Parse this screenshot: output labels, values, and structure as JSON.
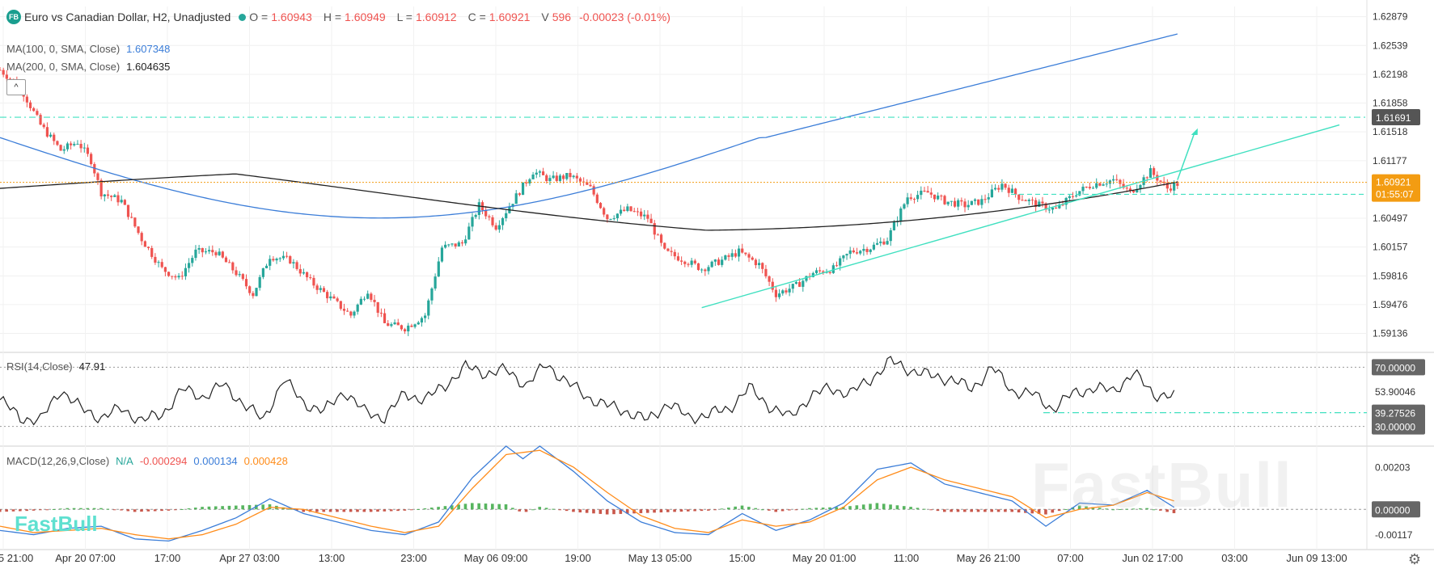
{
  "header": {
    "badge": "FB",
    "title": "Euro vs Canadian Dollar, H2, Unadjusted",
    "o_label": "O =",
    "o_val": "1.60943",
    "h_label": "H =",
    "h_val": "1.60949",
    "l_label": "L =",
    "l_val": "1.60912",
    "c_label": "C =",
    "c_val": "1.60921",
    "v_label": "V",
    "v_val": "596",
    "change": "-0.00023 (-0.01%)"
  },
  "indicators": {
    "ma100_label": "MA(100, 0, SMA, Close)",
    "ma100_val": "1.607348",
    "ma200_label": "MA(200, 0, SMA, Close)",
    "ma200_val": "1.604635",
    "collapse": "^",
    "rsi_label": "RSI(14,Close)",
    "rsi_val": "47.91",
    "macd_label": "MACD(12,26,9,Close)",
    "macd_na": "N/A",
    "macd_hist": "-0.000294",
    "macd_line": "0.000134",
    "macd_signal": "0.000428"
  },
  "watermark": "FastBull",
  "watermark_small": "FastBull",
  "settings_icon": "gear-icon",
  "colors": {
    "up": "#26a69a",
    "down": "#ef5350",
    "ma100": "#3b7dd8",
    "ma200": "#222222",
    "trend": "#40e0c0",
    "last_price": "#f39c12",
    "macd_line": "#3b7dd8",
    "macd_signal": "#ff8c1a"
  },
  "chart_data": [
    {
      "type": "candlestick",
      "title": "Euro vs Canadian Dollar, H2, Unadjusted",
      "price_ticks": [
        "1.62879",
        "1.62539",
        "1.62198",
        "1.61858",
        "1.61518",
        "1.61177",
        "1.60497",
        "1.60157",
        "1.59816",
        "1.59476",
        "1.59136"
      ],
      "ylim": [
        1.5895,
        1.63
      ],
      "x_tick_labels": [
        "Apr 15 21:00",
        "Apr 20 07:00",
        "17:00",
        "Apr 27 03:00",
        "13:00",
        "23:00",
        "May 06 09:00",
        "19:00",
        "May 13 05:00",
        "15:00",
        "May 20 01:00",
        "11:00",
        "May 26 21:00",
        "07:00",
        "Jun 02 17:00",
        "03:00",
        "Jun 09 13:00"
      ],
      "close_path": [
        [
          0,
          1.6225
        ],
        [
          6,
          1.6205
        ],
        [
          12,
          1.616
        ],
        [
          18,
          1.613
        ],
        [
          23,
          1.614
        ],
        [
          27,
          1.6118
        ],
        [
          30,
          1.608
        ],
        [
          36,
          1.607
        ],
        [
          42,
          1.6025
        ],
        [
          48,
          1.599
        ],
        [
          53,
          1.5978
        ],
        [
          58,
          1.601
        ],
        [
          64,
          1.601
        ],
        [
          70,
          1.5985
        ],
        [
          75,
          1.596
        ],
        [
          80,
          1.6005
        ],
        [
          86,
          1.6
        ],
        [
          92,
          1.5975
        ],
        [
          98,
          1.5955
        ],
        [
          104,
          1.5935
        ],
        [
          109,
          1.5965
        ],
        [
          114,
          1.5925
        ],
        [
          120,
          1.592
        ],
        [
          126,
          1.5935
        ],
        [
          131,
          1.6015
        ],
        [
          137,
          1.602
        ],
        [
          142,
          1.6065
        ],
        [
          147,
          1.604
        ],
        [
          152,
          1.607
        ],
        [
          158,
          1.6105
        ],
        [
          163,
          1.6095
        ],
        [
          169,
          1.61
        ],
        [
          175,
          1.6085
        ],
        [
          180,
          1.605
        ],
        [
          186,
          1.606
        ],
        [
          192,
          1.605
        ],
        [
          197,
          1.601
        ],
        [
          203,
          1.6
        ],
        [
          208,
          1.599
        ],
        [
          214,
          1.6
        ],
        [
          219,
          1.601
        ],
        [
          225,
          1.5995
        ],
        [
          230,
          1.596
        ],
        [
          236,
          1.597
        ],
        [
          241,
          1.5985
        ],
        [
          247,
          1.599
        ],
        [
          252,
          1.601
        ],
        [
          258,
          1.6015
        ],
        [
          263,
          1.6025
        ],
        [
          269,
          1.6075
        ],
        [
          275,
          1.608
        ],
        [
          280,
          1.607
        ],
        [
          286,
          1.6065
        ],
        [
          291,
          1.607
        ],
        [
          297,
          1.609
        ],
        [
          302,
          1.6075
        ],
        [
          308,
          1.6065
        ],
        [
          313,
          1.606
        ],
        [
          319,
          1.608
        ],
        [
          324,
          1.609
        ],
        [
          330,
          1.6095
        ],
        [
          335,
          1.608
        ],
        [
          341,
          1.6105
        ],
        [
          346,
          1.6085
        ],
        [
          350,
          1.6092
        ]
      ],
      "last_price": "1.60921",
      "countdown": "01:55:07",
      "resistance": "1.61691",
      "series": [
        {
          "name": "MA(100, 0, SMA, Close)",
          "last": 1.607348
        },
        {
          "name": "MA(200, 0, SMA, Close)",
          "last": 1.604635
        }
      ]
    },
    {
      "type": "line",
      "title": "RSI(14,Close)",
      "ticks": [
        "70.00000",
        "53.90046",
        "39.27526",
        "30.00000"
      ],
      "ylim": [
        20,
        80
      ],
      "levels": [
        70,
        30
      ],
      "support_level": "39.27526",
      "value": [
        [
          0,
          48
        ],
        [
          6,
          36
        ],
        [
          12,
          34
        ],
        [
          18,
          55
        ],
        [
          24,
          42
        ],
        [
          30,
          36
        ],
        [
          36,
          42
        ],
        [
          42,
          34
        ],
        [
          48,
          38
        ],
        [
          54,
          55
        ],
        [
          60,
          50
        ],
        [
          66,
          58
        ],
        [
          72,
          46
        ],
        [
          78,
          34
        ],
        [
          84,
          62
        ],
        [
          90,
          46
        ],
        [
          96,
          40
        ],
        [
          102,
          54
        ],
        [
          108,
          40
        ],
        [
          114,
          36
        ],
        [
          120,
          52
        ],
        [
          126,
          48
        ],
        [
          132,
          58
        ],
        [
          138,
          70
        ],
        [
          144,
          66
        ],
        [
          150,
          68
        ],
        [
          156,
          58
        ],
        [
          162,
          72
        ],
        [
          168,
          60
        ],
        [
          174,
          50
        ],
        [
          180,
          44
        ],
        [
          186,
          40
        ],
        [
          192,
          34
        ],
        [
          198,
          46
        ],
        [
          204,
          36
        ],
        [
          210,
          38
        ],
        [
          216,
          42
        ],
        [
          222,
          56
        ],
        [
          228,
          44
        ],
        [
          234,
          36
        ],
        [
          240,
          50
        ],
        [
          246,
          56
        ],
        [
          252,
          52
        ],
        [
          258,
          62
        ],
        [
          264,
          74
        ],
        [
          270,
          68
        ],
        [
          276,
          64
        ],
        [
          282,
          62
        ],
        [
          288,
          55
        ],
        [
          294,
          70
        ],
        [
          300,
          54
        ],
        [
          306,
          52
        ],
        [
          312,
          42
        ],
        [
          318,
          52
        ],
        [
          324,
          56
        ],
        [
          330,
          54
        ],
        [
          336,
          66
        ],
        [
          342,
          52
        ],
        [
          348,
          50
        ]
      ]
    },
    {
      "type": "bar",
      "title": "MACD(12,26,9,Close)",
      "ticks": [
        "0.00203",
        "0.00000",
        "-0.00117"
      ],
      "ylim": [
        -0.0016,
        0.003
      ],
      "series": [
        {
          "name": "MACD",
          "values": [
            [
              0,
              -0.001
            ],
            [
              10,
              -0.0012
            ],
            [
              20,
              -0.0009
            ],
            [
              30,
              -0.0008
            ],
            [
              40,
              -0.0014
            ],
            [
              50,
              -0.0015
            ],
            [
              60,
              -0.001
            ],
            [
              70,
              -0.0004
            ],
            [
              80,
              0.0005
            ],
            [
              90,
              -0.0002
            ],
            [
              100,
              -0.0006
            ],
            [
              110,
              -0.001
            ],
            [
              120,
              -0.0012
            ],
            [
              130,
              -0.0006
            ],
            [
              140,
              0.0015
            ],
            [
              150,
              0.003
            ],
            [
              155,
              0.0024
            ],
            [
              160,
              0.003
            ],
            [
              170,
              0.0018
            ],
            [
              180,
              0.0004
            ],
            [
              190,
              -0.0006
            ],
            [
              200,
              -0.0011
            ],
            [
              210,
              -0.0012
            ],
            [
              220,
              -0.0002
            ],
            [
              230,
              -0.001
            ],
            [
              240,
              -0.0005
            ],
            [
              250,
              0.0003
            ],
            [
              260,
              0.0019
            ],
            [
              270,
              0.0022
            ],
            [
              280,
              0.0012
            ],
            [
              290,
              0.0008
            ],
            [
              300,
              0.0004
            ],
            [
              310,
              -0.0008
            ],
            [
              320,
              0.0003
            ],
            [
              330,
              0.0002
            ],
            [
              340,
              0.0009
            ],
            [
              348,
              0.0001
            ]
          ]
        },
        {
          "name": "Signal",
          "values": [
            [
              0,
              -0.0008
            ],
            [
              10,
              -0.0011
            ],
            [
              20,
              -0.001
            ],
            [
              30,
              -0.0009
            ],
            [
              40,
              -0.0012
            ],
            [
              50,
              -0.0014
            ],
            [
              60,
              -0.0012
            ],
            [
              70,
              -0.0007
            ],
            [
              80,
              0.0001
            ],
            [
              90,
              0.0
            ],
            [
              100,
              -0.0004
            ],
            [
              110,
              -0.0008
            ],
            [
              120,
              -0.0011
            ],
            [
              130,
              -0.0008
            ],
            [
              140,
              0.001
            ],
            [
              150,
              0.0026
            ],
            [
              160,
              0.0028
            ],
            [
              170,
              0.002
            ],
            [
              180,
              0.0008
            ],
            [
              190,
              -0.0003
            ],
            [
              200,
              -0.0009
            ],
            [
              210,
              -0.0011
            ],
            [
              220,
              -0.0005
            ],
            [
              230,
              -0.0008
            ],
            [
              240,
              -0.0006
            ],
            [
              250,
              0.0001
            ],
            [
              260,
              0.0014
            ],
            [
              270,
              0.002
            ],
            [
              280,
              0.0014
            ],
            [
              290,
              0.001
            ],
            [
              300,
              0.0006
            ],
            [
              310,
              -0.0004
            ],
            [
              320,
              0.0
            ],
            [
              330,
              0.0002
            ],
            [
              340,
              0.0008
            ],
            [
              348,
              0.0004
            ]
          ]
        }
      ]
    }
  ]
}
